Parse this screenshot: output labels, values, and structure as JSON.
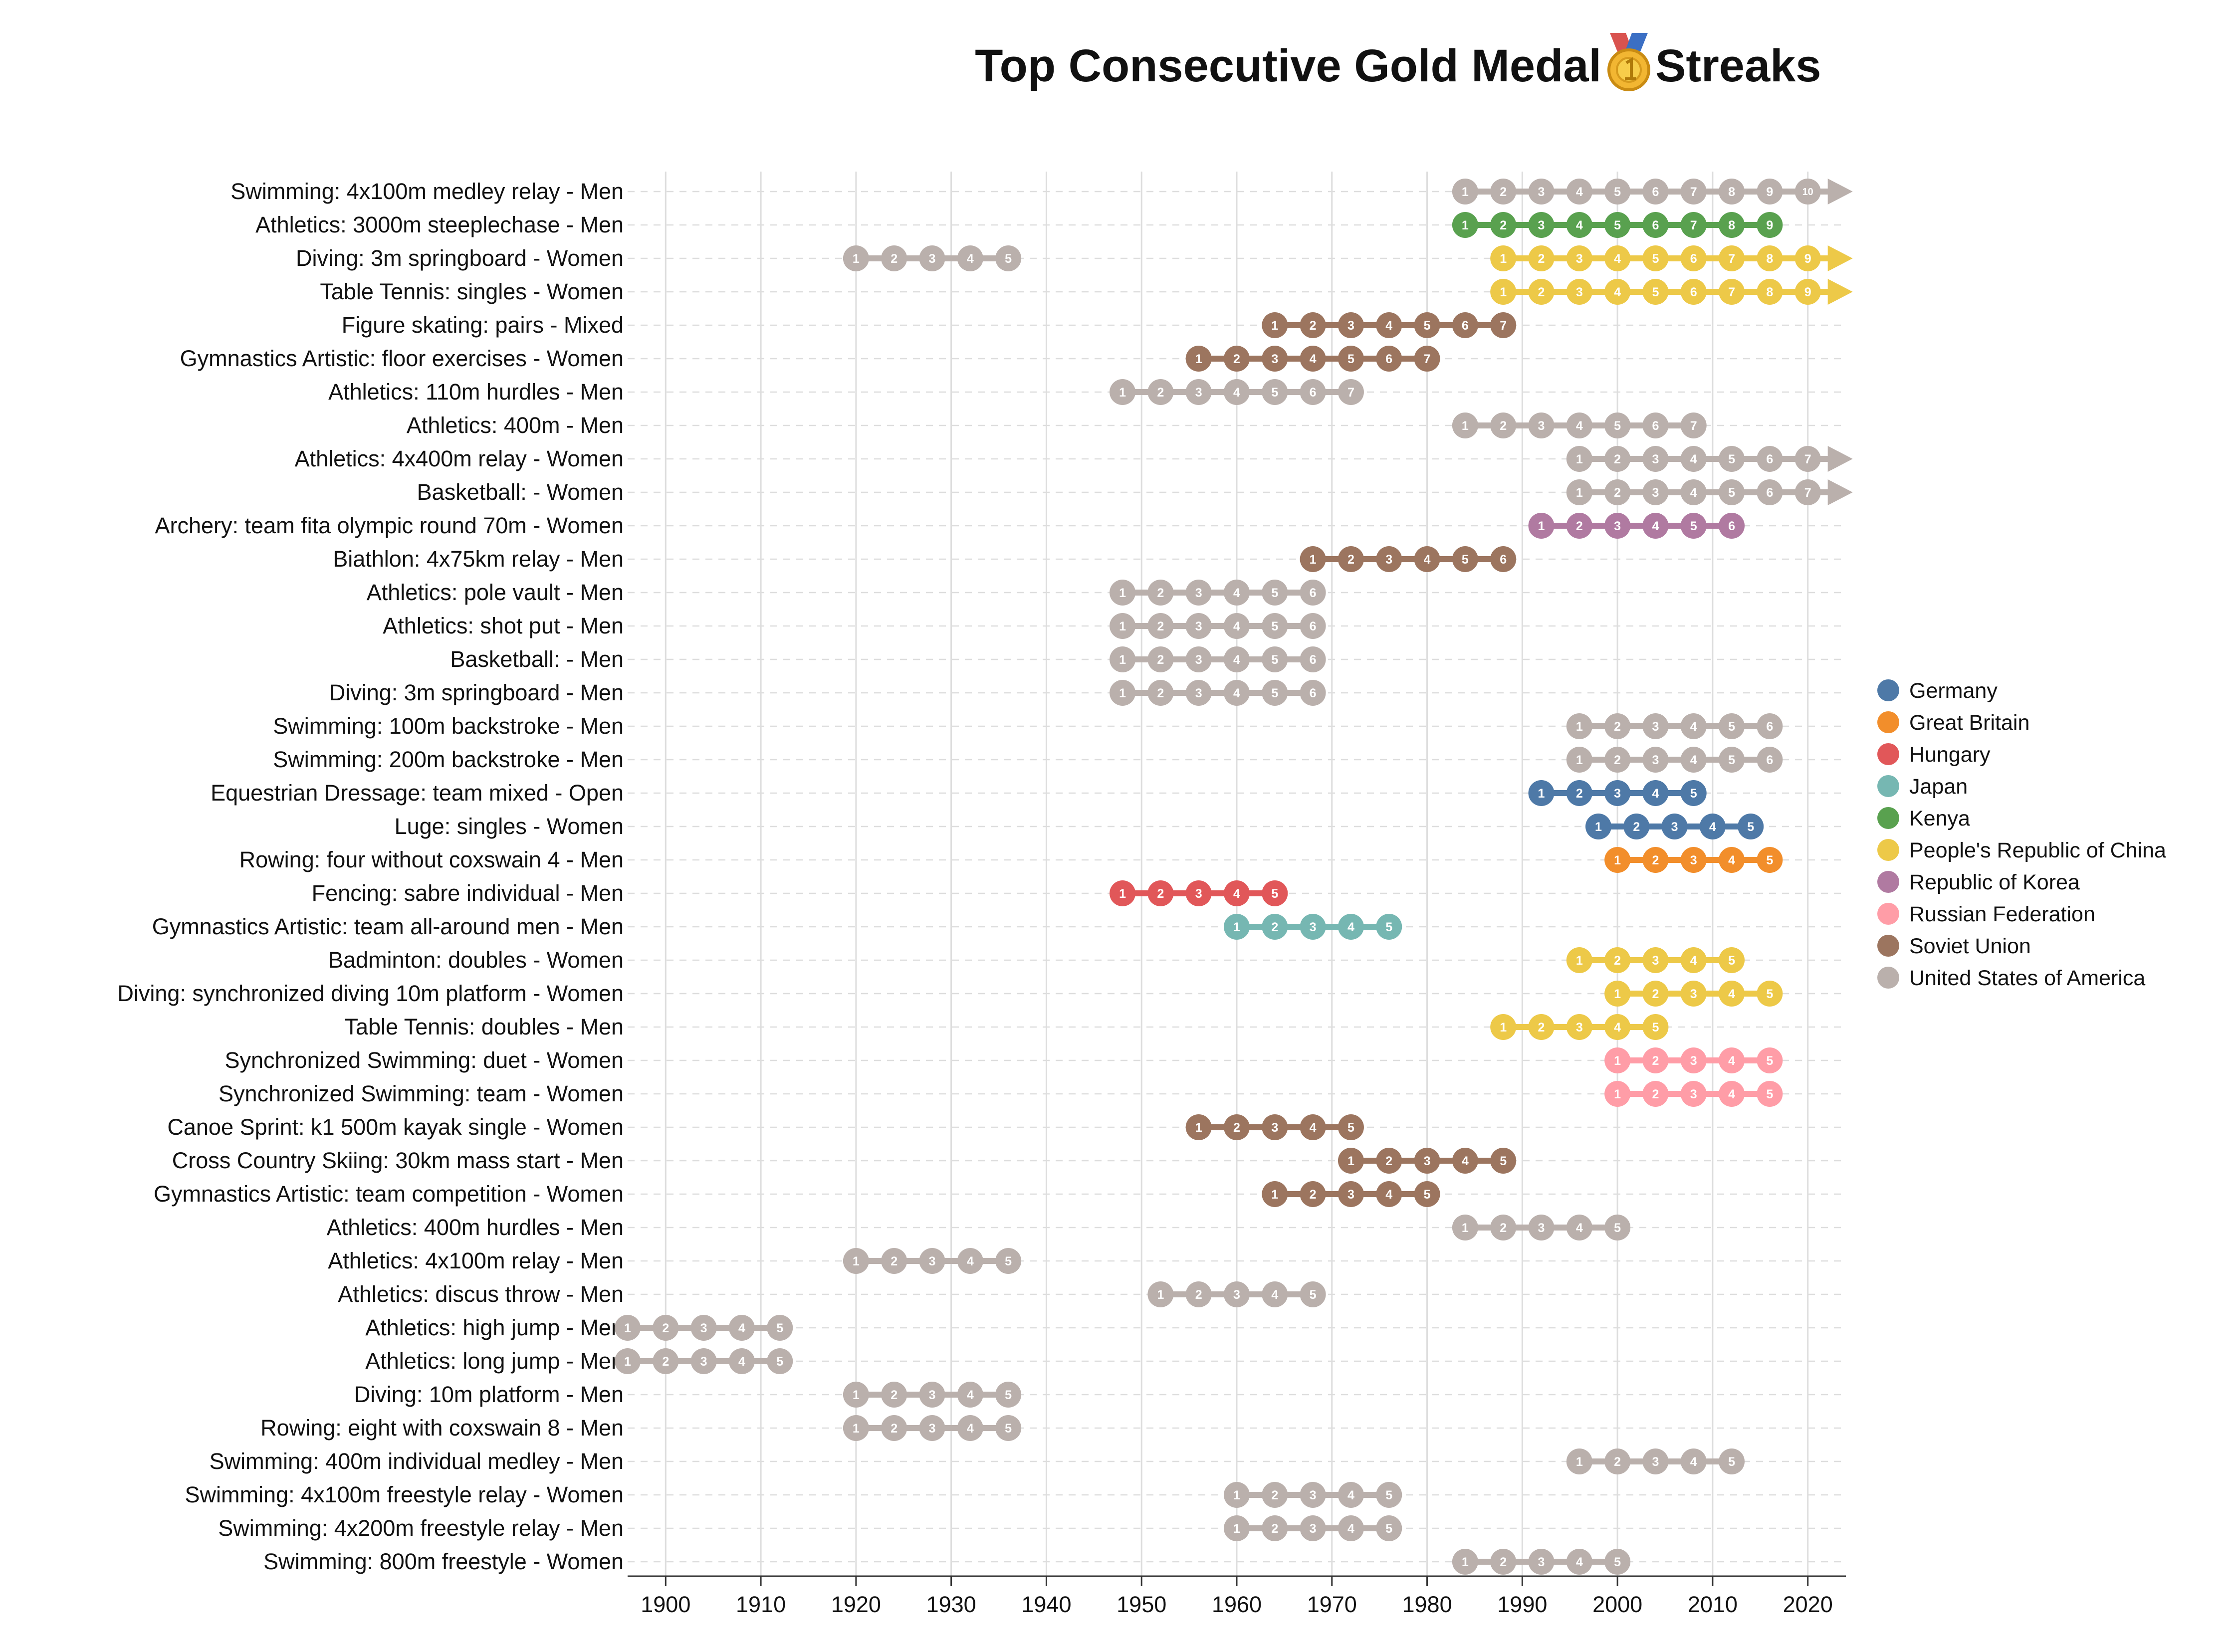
{
  "chart_data": {
    "type": "scatter",
    "title_before": "Top Consecutive Gold Medal",
    "title_after": "Streaks",
    "title_icon": "gold-medal-icon",
    "xlim": [
      1896,
      2024
    ],
    "x_ticks": [
      1900,
      1910,
      1920,
      1930,
      1940,
      1950,
      1960,
      1970,
      1980,
      1990,
      2000,
      2010,
      2020
    ],
    "grid": true,
    "legend_position": "right",
    "legend": [
      {
        "name": "Germany",
        "color": "#4e79a7"
      },
      {
        "name": "Great Britain",
        "color": "#f28e2b"
      },
      {
        "name": "Hungary",
        "color": "#e15759"
      },
      {
        "name": "Japan",
        "color": "#76b7b2"
      },
      {
        "name": "Kenya",
        "color": "#59a14f"
      },
      {
        "name": "People's Republic of China",
        "color": "#edc948"
      },
      {
        "name": "Republic of Korea",
        "color": "#b07aa1"
      },
      {
        "name": "Russian Federation",
        "color": "#ff9da7"
      },
      {
        "name": "Soviet Union",
        "color": "#9c755f"
      },
      {
        "name": "United States of America",
        "color": "#bab0ac"
      }
    ],
    "rows": [
      {
        "label": "Swimming: 4x100m medley relay - Men",
        "country": "United States of America",
        "start": 1984,
        "end": 2020,
        "interval": 4,
        "ongoing": true
      },
      {
        "label": "Athletics: 3000m steeplechase - Men",
        "country": "Kenya",
        "start": 1984,
        "end": 2016,
        "interval": 4,
        "ongoing": false
      },
      {
        "label": "Diving: 3m springboard - Women",
        "country": "United States of America",
        "start": 1920,
        "end": 1936,
        "interval": 4,
        "ongoing": false
      },
      {
        "label": "Diving: 3m springboard - Women",
        "country": "People's Republic of China",
        "start": 1988,
        "end": 2020,
        "interval": 4,
        "ongoing": true
      },
      {
        "label": "Table Tennis: singles - Women",
        "country": "People's Republic of China",
        "start": 1988,
        "end": 2020,
        "interval": 4,
        "ongoing": true
      },
      {
        "label": "Figure skating: pairs - Mixed",
        "country": "Soviet Union",
        "start": 1964,
        "end": 1988,
        "interval": 4,
        "ongoing": false
      },
      {
        "label": "Gymnastics Artistic: floor exercises - Women",
        "country": "Soviet Union",
        "start": 1956,
        "end": 1980,
        "interval": 4,
        "ongoing": false
      },
      {
        "label": "Athletics: 110m hurdles - Men",
        "country": "United States of America",
        "start": 1948,
        "end": 1972,
        "interval": 4,
        "ongoing": false
      },
      {
        "label": "Athletics: 400m - Men",
        "country": "United States of America",
        "start": 1984,
        "end": 2008,
        "interval": 4,
        "ongoing": false
      },
      {
        "label": "Athletics: 4x400m relay - Women",
        "country": "United States of America",
        "start": 1996,
        "end": 2020,
        "interval": 4,
        "ongoing": true
      },
      {
        "label": "Basketball:  - Women",
        "country": "United States of America",
        "start": 1996,
        "end": 2020,
        "interval": 4,
        "ongoing": true
      },
      {
        "label": "Archery: team fita olympic round  70m - Women",
        "country": "Republic of Korea",
        "start": 1992,
        "end": 2012,
        "interval": 4,
        "ongoing": false
      },
      {
        "label": "Biathlon: 4x75km relay - Men",
        "country": "Soviet Union",
        "start": 1968,
        "end": 1988,
        "interval": 4,
        "ongoing": false
      },
      {
        "label": "Athletics: pole vault - Men",
        "country": "United States of America",
        "start": 1948,
        "end": 1968,
        "interval": 4,
        "ongoing": false
      },
      {
        "label": "Athletics: shot put - Men",
        "country": "United States of America",
        "start": 1948,
        "end": 1968,
        "interval": 4,
        "ongoing": false
      },
      {
        "label": "Basketball:  - Men",
        "country": "United States of America",
        "start": 1948,
        "end": 1968,
        "interval": 4,
        "ongoing": false
      },
      {
        "label": "Diving: 3m springboard - Men",
        "country": "United States of America",
        "start": 1948,
        "end": 1968,
        "interval": 4,
        "ongoing": false
      },
      {
        "label": "Swimming: 100m backstroke - Men",
        "country": "United States of America",
        "start": 1996,
        "end": 2016,
        "interval": 4,
        "ongoing": false
      },
      {
        "label": "Swimming: 200m backstroke - Men",
        "country": "United States of America",
        "start": 1996,
        "end": 2016,
        "interval": 4,
        "ongoing": false
      },
      {
        "label": "Equestrian Dressage: team mixed - Open",
        "country": "Germany",
        "start": 1992,
        "end": 2008,
        "interval": 4,
        "ongoing": false
      },
      {
        "label": "Luge: singles - Women",
        "country": "Germany",
        "start": 1998,
        "end": 2014,
        "interval": 4,
        "ongoing": false
      },
      {
        "label": "Rowing: four without coxswain 4 - Men",
        "country": "Great Britain",
        "start": 2000,
        "end": 2016,
        "interval": 4,
        "ongoing": false
      },
      {
        "label": "Fencing: sabre individual - Men",
        "country": "Hungary",
        "start": 1948,
        "end": 1964,
        "interval": 4,
        "ongoing": false
      },
      {
        "label": "Gymnastics Artistic: team all-around men - Men",
        "country": "Japan",
        "start": 1960,
        "end": 1976,
        "interval": 4,
        "ongoing": false
      },
      {
        "label": "Badminton: doubles - Women",
        "country": "People's Republic of China",
        "start": 1996,
        "end": 2012,
        "interval": 4,
        "ongoing": false
      },
      {
        "label": "Diving: synchronized diving 10m platform - Women",
        "country": "People's Republic of China",
        "start": 2000,
        "end": 2016,
        "interval": 4,
        "ongoing": false
      },
      {
        "label": "Table Tennis: doubles - Men",
        "country": "People's Republic of China",
        "start": 1988,
        "end": 2004,
        "interval": 4,
        "ongoing": false
      },
      {
        "label": "Synchronized Swimming: duet - Women",
        "country": "Russian Federation",
        "start": 2000,
        "end": 2016,
        "interval": 4,
        "ongoing": false
      },
      {
        "label": "Synchronized Swimming: team - Women",
        "country": "Russian Federation",
        "start": 2000,
        "end": 2016,
        "interval": 4,
        "ongoing": false
      },
      {
        "label": "Canoe Sprint: k1 500m kayak single - Women",
        "country": "Soviet Union",
        "start": 1956,
        "end": 1972,
        "interval": 4,
        "ongoing": false
      },
      {
        "label": "Cross Country Skiing: 30km mass start - Men",
        "country": "Soviet Union",
        "start": 1972,
        "end": 1988,
        "interval": 4,
        "ongoing": false
      },
      {
        "label": "Gymnastics Artistic: team competition - Women",
        "country": "Soviet Union",
        "start": 1964,
        "end": 1980,
        "interval": 4,
        "ongoing": false
      },
      {
        "label": "Athletics: 400m hurdles - Men",
        "country": "United States of America",
        "start": 1984,
        "end": 2000,
        "interval": 4,
        "ongoing": false
      },
      {
        "label": "Athletics: 4x100m relay - Men",
        "country": "United States of America",
        "start": 1920,
        "end": 1936,
        "interval": 4,
        "ongoing": false
      },
      {
        "label": "Athletics: discus throw - Men",
        "country": "United States of America",
        "start": 1952,
        "end": 1968,
        "interval": 4,
        "ongoing": false
      },
      {
        "label": "Athletics: high jump - Men",
        "country": "United States of America",
        "start": 1896,
        "end": 1912,
        "interval": 4,
        "ongoing": false
      },
      {
        "label": "Athletics: long jump - Men",
        "country": "United States of America",
        "start": 1896,
        "end": 1912,
        "interval": 4,
        "ongoing": false
      },
      {
        "label": "Diving: 10m platform - Men",
        "country": "United States of America",
        "start": 1920,
        "end": 1936,
        "interval": 4,
        "ongoing": false
      },
      {
        "label": "Rowing: eight with coxswain 8 - Men",
        "country": "United States of America",
        "start": 1920,
        "end": 1936,
        "interval": 4,
        "ongoing": false
      },
      {
        "label": "Swimming: 400m individual medley - Men",
        "country": "United States of America",
        "start": 1996,
        "end": 2012,
        "interval": 4,
        "ongoing": false
      },
      {
        "label": "Swimming: 4x100m freestyle relay - Women",
        "country": "United States of America",
        "start": 1960,
        "end": 1976,
        "interval": 4,
        "ongoing": false
      },
      {
        "label": "Swimming: 4x200m freestyle relay - Men",
        "country": "United States of America",
        "start": 1960,
        "end": 1976,
        "interval": 4,
        "ongoing": false
      },
      {
        "label": "Swimming: 800m freestyle - Women",
        "country": "United States of America",
        "start": 1984,
        "end": 2000,
        "interval": 4,
        "ongoing": false
      }
    ]
  }
}
